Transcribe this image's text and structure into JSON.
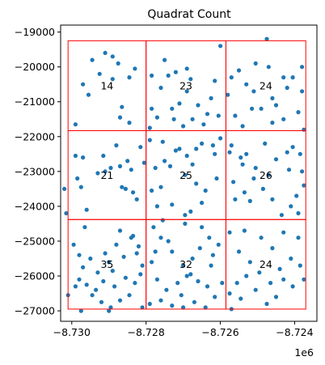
{
  "chart_data": {
    "type": "scatter",
    "title": "Quadrat Count",
    "x_offset_label": "1e6",
    "xlim": [
      -8730300,
      -8723400
    ],
    "ylim": [
      -27300,
      -18800
    ],
    "x_ticks": [
      {
        "value": -8730000,
        "label": "−8.730"
      },
      {
        "value": -8728000,
        "label": "−8.728"
      },
      {
        "value": -8726000,
        "label": "−8.726"
      },
      {
        "value": -8724000,
        "label": "−8.724"
      }
    ],
    "y_ticks": [
      {
        "value": -19000,
        "label": "−19000"
      },
      {
        "value": -20000,
        "label": "−20000"
      },
      {
        "value": -21000,
        "label": "−21000"
      },
      {
        "value": -22000,
        "label": "−22000"
      },
      {
        "value": -23000,
        "label": "−23000"
      },
      {
        "value": -24000,
        "label": "−24000"
      },
      {
        "value": -25000,
        "label": "−25000"
      },
      {
        "value": -26000,
        "label": "−26000"
      },
      {
        "value": -27000,
        "label": "−27000"
      }
    ],
    "grid": false,
    "quadrat_color": "#ff0000",
    "point_color": "#1f77b4",
    "quadrat_x_edges": [
      -8730100,
      -8728000,
      -8725850,
      -8723700
    ],
    "quadrat_y_edges": [
      -19250,
      -21830,
      -24380,
      -26950
    ],
    "counts": [
      {
        "row": 0,
        "col": 0,
        "count": "14"
      },
      {
        "row": 0,
        "col": 1,
        "count": "23"
      },
      {
        "row": 0,
        "col": 2,
        "count": "24"
      },
      {
        "row": 1,
        "col": 0,
        "count": "21"
      },
      {
        "row": 1,
        "col": 1,
        "count": "25"
      },
      {
        "row": 1,
        "col": 2,
        "count": "26"
      },
      {
        "row": 2,
        "col": 0,
        "count": "35"
      },
      {
        "row": 2,
        "col": 1,
        "count": "32"
      },
      {
        "row": 2,
        "col": 2,
        "count": "24"
      }
    ],
    "points": [
      [
        -8728900,
        -19700
      ],
      [
        -8728750,
        -19900
      ],
      [
        -8729250,
        -20200
      ],
      [
        -8728450,
        -21600
      ],
      [
        -8729550,
        -20800
      ],
      [
        -8729700,
        -20500
      ],
      [
        -8728900,
        -20350
      ],
      [
        -8728650,
        -21150
      ],
      [
        -8729100,
        -19600
      ],
      [
        -8729900,
        -21650
      ],
      [
        -8728700,
        -21450
      ],
      [
        -8728300,
        -20050
      ],
      [
        -8728450,
        -20300
      ],
      [
        -8729450,
        -19800
      ],
      [
        -8727850,
        -20250
      ],
      [
        -8727400,
        -20250
      ],
      [
        -8727200,
        -20150
      ],
      [
        -8727100,
        -21050
      ],
      [
        -8727850,
        -21200
      ],
      [
        -8727700,
        -21450
      ],
      [
        -8727300,
        -21200
      ],
      [
        -8726900,
        -20700
      ],
      [
        -8726800,
        -20350
      ],
      [
        -8726600,
        -21100
      ],
      [
        -8726350,
        -21350
      ],
      [
        -8726250,
        -20900
      ],
      [
        -8726150,
        -20400
      ],
      [
        -8726000,
        -19400
      ],
      [
        -8727000,
        -21700
      ],
      [
        -8727600,
        -20600
      ],
      [
        -8727900,
        -21750
      ],
      [
        -8726750,
        -21500
      ],
      [
        -8727500,
        -19800
      ],
      [
        -8726450,
        -21650
      ],
      [
        -8726050,
        -21400
      ],
      [
        -8727250,
        -21500
      ],
      [
        -8726900,
        -20050
      ],
      [
        -8725500,
        -20100
      ],
      [
        -8725300,
        -20500
      ],
      [
        -8725100,
        -20700
      ],
      [
        -8724900,
        -21200
      ],
      [
        -8724700,
        -20000
      ],
      [
        -8724500,
        -21100
      ],
      [
        -8724200,
        -20600
      ],
      [
        -8724050,
        -20300
      ],
      [
        -8723800,
        -20700
      ],
      [
        -8723800,
        -20000
      ],
      [
        -8725700,
        -20300
      ],
      [
        -8725600,
        -21400
      ],
      [
        -8725400,
        -21700
      ],
      [
        -8724750,
        -19200
      ],
      [
        -8724300,
        -21500
      ],
      [
        -8725050,
        -19900
      ],
      [
        -8724600,
        -20900
      ],
      [
        -8724300,
        -20300
      ],
      [
        -8725800,
        -20800
      ],
      [
        -8725150,
        -21200
      ],
      [
        -8724600,
        -21600
      ],
      [
        -8723900,
        -21300
      ],
      [
        -8723750,
        -21800
      ],
      [
        -8728550,
        -23500
      ],
      [
        -8728350,
        -23600
      ],
      [
        -8728150,
        -22300
      ],
      [
        -8729100,
        -23000
      ],
      [
        -8728700,
        -22850
      ],
      [
        -8729900,
        -22550
      ],
      [
        -8729700,
        -22600
      ],
      [
        -8728250,
        -23800
      ],
      [
        -8728950,
        -22900
      ],
      [
        -8728050,
        -22750
      ],
      [
        -8729750,
        -23450
      ],
      [
        -8728800,
        -22250
      ],
      [
        -8729150,
        -22550
      ],
      [
        -8729600,
        -24100
      ],
      [
        -8728500,
        -22700
      ],
      [
        -8729300,
        -23050
      ],
      [
        -8728400,
        -22950
      ],
      [
        -8728650,
        -23450
      ],
      [
        -8729850,
        -23200
      ],
      [
        -8730200,
        -23500
      ],
      [
        -8730150,
        -24200
      ],
      [
        -8727900,
        -22100
      ],
      [
        -8727550,
        -22150
      ],
      [
        -8727200,
        -22400
      ],
      [
        -8726900,
        -22550
      ],
      [
        -8726650,
        -22350
      ],
      [
        -8726500,
        -22200
      ],
      [
        -8726200,
        -22250
      ],
      [
        -8726000,
        -22050
      ],
      [
        -8727850,
        -23550
      ],
      [
        -8727600,
        -23450
      ],
      [
        -8727500,
        -22700
      ],
      [
        -8727350,
        -22850
      ],
      [
        -8726950,
        -23100
      ],
      [
        -8726650,
        -23350
      ],
      [
        -8726400,
        -23550
      ],
      [
        -8726100,
        -23200
      ],
      [
        -8726800,
        -24150
      ],
      [
        -8726950,
        -24250
      ],
      [
        -8727300,
        -23950
      ],
      [
        -8727700,
        -24000
      ],
      [
        -8726750,
        -22800
      ],
      [
        -8726500,
        -23900
      ],
      [
        -8727100,
        -22350
      ],
      [
        -8726150,
        -22500
      ],
      [
        -8727750,
        -22900
      ],
      [
        -8725700,
        -22250
      ],
      [
        -8725450,
        -22600
      ],
      [
        -8725300,
        -22500
      ],
      [
        -8725050,
        -22900
      ],
      [
        -8724800,
        -22200
      ],
      [
        -8724500,
        -22650
      ],
      [
        -8724200,
        -22450
      ],
      [
        -8724050,
        -22300
      ],
      [
        -8723850,
        -22500
      ],
      [
        -8723800,
        -23000
      ],
      [
        -8723750,
        -23400
      ],
      [
        -8723950,
        -23700
      ],
      [
        -8724100,
        -24000
      ],
      [
        -8724350,
        -24250
      ],
      [
        -8724600,
        -23800
      ],
      [
        -8724850,
        -23500
      ],
      [
        -8725100,
        -23200
      ],
      [
        -8725350,
        -23600
      ],
      [
        -8725600,
        -23800
      ],
      [
        -8725650,
        -23300
      ],
      [
        -8725400,
        -22800
      ],
      [
        -8724700,
        -23100
      ],
      [
        -8723900,
        -24200
      ],
      [
        -8724150,
        -22950
      ],
      [
        -8725200,
        -23850
      ],
      [
        -8725750,
        -22450
      ],
      [
        -8729950,
        -25100
      ],
      [
        -8729800,
        -25400
      ],
      [
        -8729700,
        -25750
      ],
      [
        -8729900,
        -26300
      ],
      [
        -8730100,
        -26550
      ],
      [
        -8729500,
        -25500
      ],
      [
        -8729300,
        -25900
      ],
      [
        -8729150,
        -26150
      ],
      [
        -8729000,
        -25600
      ],
      [
        -8728800,
        -25100
      ],
      [
        -8728700,
        -24700
      ],
      [
        -8728400,
        -24900
      ],
      [
        -8728250,
        -25350
      ],
      [
        -8728100,
        -25700
      ],
      [
        -8728300,
        -26200
      ],
      [
        -8728450,
        -26550
      ],
      [
        -8728700,
        -26700
      ],
      [
        -8728950,
        -26900
      ],
      [
        -8729200,
        -26750
      ],
      [
        -8729450,
        -26550
      ],
      [
        -8729600,
        -26250
      ],
      [
        -8729750,
        -27000
      ],
      [
        -8728550,
        -26050
      ],
      [
        -8728200,
        -25150
      ],
      [
        -8728100,
        -26900
      ],
      [
        -8729100,
        -25350
      ],
      [
        -8729650,
        -24600
      ],
      [
        -8728900,
        -25850
      ],
      [
        -8728600,
        -25450
      ],
      [
        -8728150,
        -25950
      ],
      [
        -8729350,
        -26400
      ],
      [
        -8728350,
        -24850
      ],
      [
        -8729000,
        -27000
      ],
      [
        -8729800,
        -26100
      ],
      [
        -8728850,
        -26300
      ],
      [
        -8727800,
        -24600
      ],
      [
        -8727600,
        -24900
      ],
      [
        -8727300,
        -25300
      ],
      [
        -8727000,
        -25700
      ],
      [
        -8726750,
        -25500
      ],
      [
        -8726550,
        -25200
      ],
      [
        -8726300,
        -24900
      ],
      [
        -8726050,
        -25100
      ],
      [
        -8727850,
        -25600
      ],
      [
        -8727700,
        -26100
      ],
      [
        -8727450,
        -26400
      ],
      [
        -8727150,
        -26200
      ],
      [
        -8726900,
        -26000
      ],
      [
        -8726600,
        -26150
      ],
      [
        -8726350,
        -26300
      ],
      [
        -8726150,
        -26600
      ],
      [
        -8725950,
        -26200
      ],
      [
        -8727900,
        -26800
      ],
      [
        -8727600,
        -26700
      ],
      [
        -8727300,
        -26850
      ],
      [
        -8727000,
        -26900
      ],
      [
        -8726700,
        -26750
      ],
      [
        -8726400,
        -26900
      ],
      [
        -8726200,
        -25400
      ],
      [
        -8727400,
        -25000
      ],
      [
        -8726950,
        -24500
      ],
      [
        -8726500,
        -24600
      ],
      [
        -8727750,
        -25300
      ],
      [
        -8727050,
        -26550
      ],
      [
        -8726800,
        -25950
      ],
      [
        -8726250,
        -25700
      ],
      [
        -8727550,
        -24400
      ],
      [
        -8725750,
        -24750
      ],
      [
        -8725500,
        -25300
      ],
      [
        -8725200,
        -25600
      ],
      [
        -8724900,
        -24900
      ],
      [
        -8724600,
        -25200
      ],
      [
        -8724300,
        -24750
      ],
      [
        -8724100,
        -25500
      ],
      [
        -8723850,
        -25700
      ],
      [
        -8723750,
        -26100
      ],
      [
        -8724050,
        -26300
      ],
      [
        -8724300,
        -26100
      ],
      [
        -8724500,
        -26600
      ],
      [
        -8724750,
        -26800
      ],
      [
        -8725050,
        -26400
      ],
      [
        -8725300,
        -26000
      ],
      [
        -8725550,
        -26200
      ],
      [
        -8725750,
        -26500
      ],
      [
        -8725700,
        -26950
      ],
      [
        -8725350,
        -24700
      ],
      [
        -8724400,
        -25800
      ],
      [
        -8723900,
        -24900
      ],
      [
        -8724650,
        -26200
      ],
      [
        -8725450,
        -26650
      ],
      [
        -8724950,
        -25900
      ]
    ]
  }
}
